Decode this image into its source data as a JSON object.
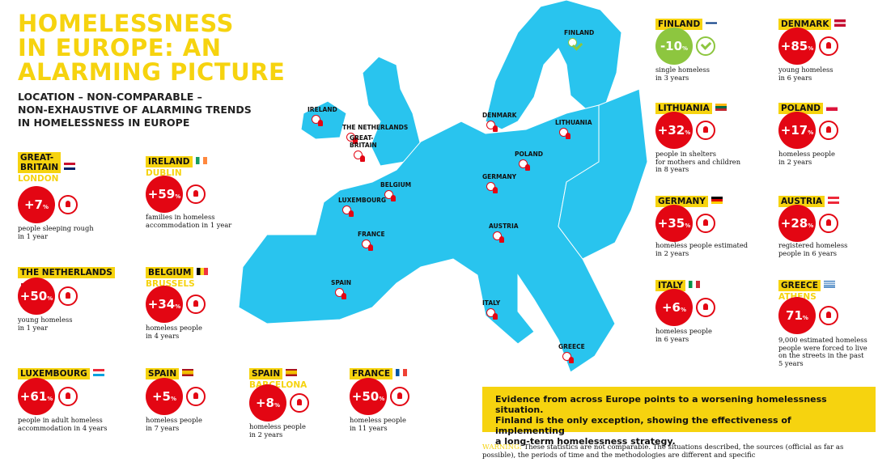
{
  "header": {
    "title_lines": [
      "HOMELESSNESS",
      "IN EUROPE: AN",
      "ALARMING PICTURE"
    ],
    "subtitle_lines": [
      "LOCATION – NON-COMPARABLE –",
      "NON-EXHAUSTIVE OF ALARMING TRENDS",
      "IN HOMELESSNESS IN EUROPE"
    ]
  },
  "map": {
    "labels": [
      [
        "FINLAND"
      ],
      [
        "IRELAND"
      ],
      [
        "DENMARK"
      ],
      [
        "LITHUANIA"
      ],
      [
        "THE NETHERLANDS"
      ],
      [
        "GREAT-",
        "BRITAIN"
      ],
      [
        "POLAND"
      ],
      [
        "GERMANY"
      ],
      [
        "BELGIUM"
      ],
      [
        "LUXEMBOURG"
      ],
      [
        "AUSTRIA"
      ],
      [
        "FRANCE"
      ],
      [
        "SPAIN"
      ],
      [
        "ITALY"
      ],
      [
        "GREECE"
      ]
    ]
  },
  "cards": [
    {
      "country_lines": [
        "GREAT-",
        "BRITAIN"
      ],
      "city": "LONDON",
      "stat": "+7",
      "unit": "%",
      "description": [
        "people sleeping rough",
        "in 1 year"
      ]
    },
    {
      "country_lines": [
        "IRELAND"
      ],
      "city": "DUBLIN",
      "stat": "+59",
      "unit": "%",
      "description": [
        "families in homeless",
        "accommodation in 1 year"
      ]
    },
    {
      "country_lines": [
        "THE NETHERLANDS"
      ],
      "stat": "+50",
      "unit": "%",
      "description": [
        "young homeless",
        "in 1 year"
      ]
    },
    {
      "country_lines": [
        "BELGIUM"
      ],
      "city": "BRUSSELS",
      "stat": "+34",
      "unit": "%",
      "description": [
        "homeless people",
        "in 4 years"
      ]
    },
    {
      "country_lines": [
        "LUXEMBOURG"
      ],
      "stat": "+61",
      "unit": "%",
      "description": [
        "people in adult homeless",
        "accommodation in 4 years"
      ]
    },
    {
      "country_lines": [
        "SPAIN"
      ],
      "stat": "+5",
      "unit": "%",
      "description": [
        "homeless people",
        "in 7 years"
      ]
    },
    {
      "country_lines": [
        "SPAIN"
      ],
      "city": "BARCELONA",
      "stat": "+8",
      "unit": "%",
      "description": [
        "homeless people",
        "in 2 years"
      ]
    },
    {
      "country_lines": [
        "FRANCE"
      ],
      "stat": "+50",
      "unit": "%",
      "description": [
        "homeless people",
        "in 11 years"
      ]
    },
    {
      "country_lines": [
        "FINLAND"
      ],
      "stat": "-10",
      "unit": "%",
      "description": [
        "single homeless",
        "in 3 years"
      ]
    },
    {
      "country_lines": [
        "DENMARK"
      ],
      "stat": "+85",
      "unit": "%",
      "description": [
        "young homeless",
        "in 6 years"
      ]
    },
    {
      "country_lines": [
        "LITHUANIA"
      ],
      "stat": "+32",
      "unit": "%",
      "description": [
        "people in shelters",
        "for mothers and children",
        "in 8 years"
      ]
    },
    {
      "country_lines": [
        "POLAND"
      ],
      "stat": "+17",
      "unit": "%",
      "description": [
        "homeless people",
        "in 2 years"
      ]
    },
    {
      "country_lines": [
        "GERMANY"
      ],
      "stat": "+35",
      "unit": "%",
      "description": [
        "homeless people estimated",
        "in 2 years"
      ]
    },
    {
      "country_lines": [
        "AUSTRIA"
      ],
      "stat": "+28",
      "unit": "%",
      "description": [
        "registered homeless",
        "people in 6 years"
      ]
    },
    {
      "country_lines": [
        "ITALY"
      ],
      "stat": "+6",
      "unit": "%",
      "description": [
        "homeless people",
        "in 6 years"
      ]
    },
    {
      "country_lines": [
        "GREECE"
      ],
      "city": "ATHENS",
      "stat": "71",
      "unit": "%",
      "description": [
        "9,000 estimated homeless",
        "people were forced to live",
        "on the streets in the past",
        "5 years"
      ]
    }
  ],
  "callout": {
    "lines": [
      "Evidence from across Europe points to a worsening homelessness situation.",
      "Finland is the only exception, showing the effectiveness of implementing",
      "a long-term homelessness strategy."
    ]
  },
  "warning": {
    "label": "WARNING:",
    "text": "These statistics are not comparable. The situations described, the sources (official as far as possible), the periods of time and the methodologies are different and specific"
  }
}
